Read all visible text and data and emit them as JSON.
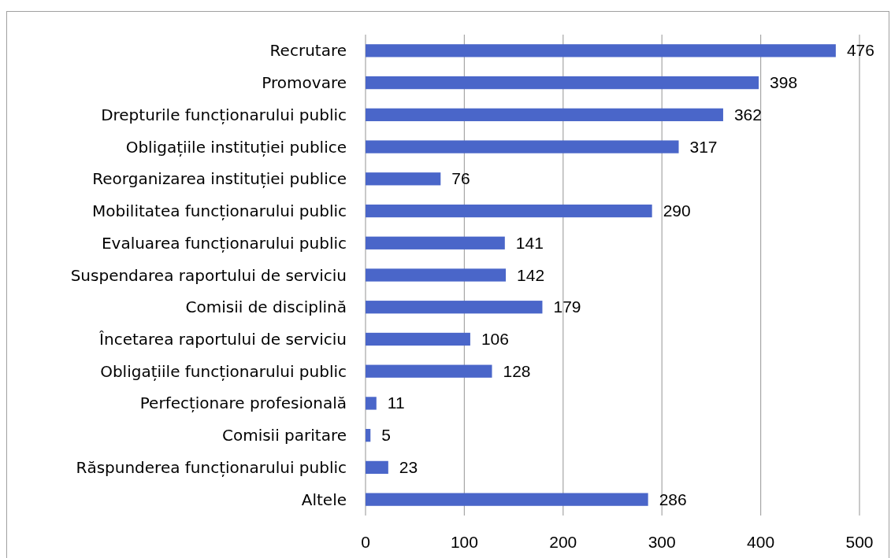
{
  "chart_data": {
    "type": "bar",
    "orientation": "horizontal",
    "categories": [
      "Recrutare",
      "Promovare",
      "Drepturile funcționarului public",
      "Obligațiile instituției publice",
      "Reorganizarea instituției publice",
      "Mobilitatea funcționarului public",
      "Evaluarea funcționarului public",
      "Suspendarea raportului de serviciu",
      "Comisii de disciplină",
      "Încetarea raportului de serviciu",
      "Obligațiile funcționarului public",
      "Perfecționare profesională",
      "Comisii paritare",
      "Răspunderea funcționarului public",
      "Altele"
    ],
    "values": [
      476,
      398,
      362,
      317,
      76,
      290,
      141,
      142,
      179,
      106,
      128,
      11,
      5,
      23,
      286
    ],
    "color": "#4a66c9",
    "xlim": [
      0,
      500
    ],
    "xticks": [
      0,
      100,
      200,
      300,
      400,
      500
    ],
    "grid": "x",
    "data_labels": true
  }
}
